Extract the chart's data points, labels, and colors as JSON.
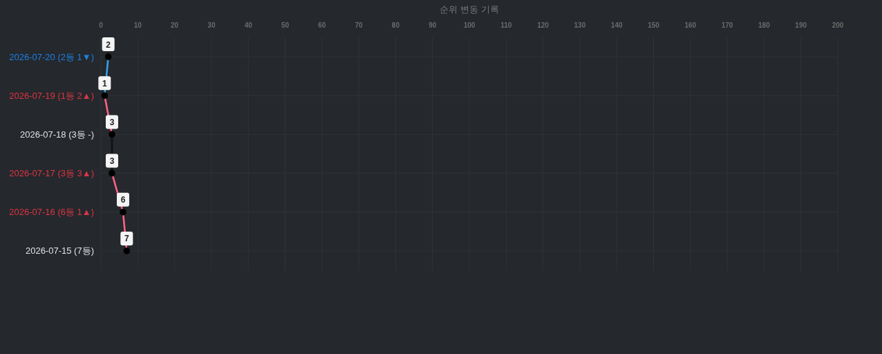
{
  "chart_data": {
    "type": "line",
    "title": "순위 변동 기록",
    "orientation": "horizontal",
    "categories": [
      "2026-07-20 (2등 1▼)",
      "2026-07-19 (1등 2▲)",
      "2026-07-18 (3등 -)",
      "2026-07-17 (3등 3▲)",
      "2026-07-16 (6등 1▲)",
      "2026-07-15 (7등)"
    ],
    "xlim": [
      0,
      200
    ],
    "xticks": [
      0,
      10,
      20,
      30,
      40,
      50,
      60,
      70,
      80,
      90,
      100,
      110,
      120,
      130,
      140,
      150,
      160,
      170,
      180,
      190,
      200
    ],
    "grid": true,
    "series": [
      {
        "type": "line",
        "color": "#36a2eb",
        "marker": "none",
        "values": [
          2,
          1,
          null,
          null,
          null,
          null
        ]
      },
      {
        "type": "line",
        "color": "#ff6384",
        "marker": "none",
        "values": [
          null,
          1,
          3,
          null,
          null,
          null
        ]
      },
      {
        "type": "line",
        "color": "#111111",
        "marker": "none",
        "values": [
          null,
          null,
          3,
          3,
          null,
          null
        ]
      },
      {
        "type": "line",
        "color": "#ff6384",
        "marker": "none",
        "values": [
          null,
          null,
          null,
          3,
          6,
          7
        ]
      },
      {
        "type": "scatter",
        "color": "#000000",
        "marker": "circle",
        "data_labels": true,
        "values": [
          2,
          1,
          3,
          3,
          6,
          7
        ]
      }
    ]
  }
}
